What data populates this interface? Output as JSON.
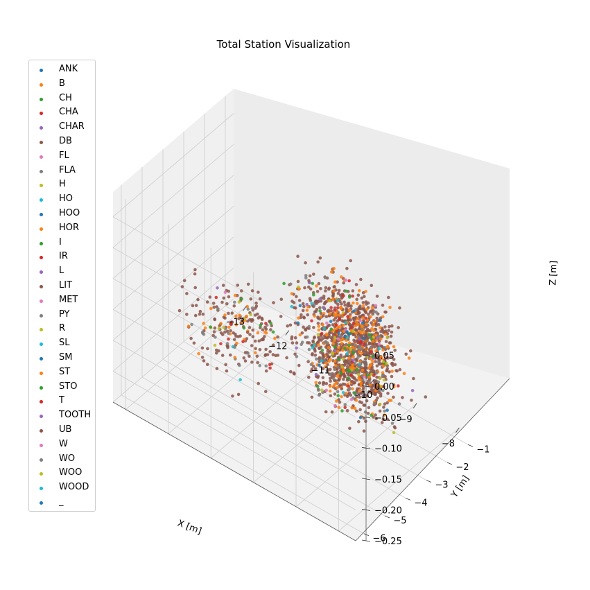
{
  "chart_data": {
    "type": "scatter",
    "title": "Total Station Visualization",
    "xlabel": "X [m]",
    "ylabel": "Y [m]",
    "zlabel": "Z [m]",
    "xlim": [
      -13.3,
      -7.6
    ],
    "ylim": [
      -6.4,
      -0.6
    ],
    "zlim": [
      -0.25,
      0.09
    ],
    "x_ticks": [
      "−13",
      "−12",
      "−11",
      "−10",
      "−9",
      "−8"
    ],
    "x_tick_values": [
      -13,
      -12,
      -11,
      -10,
      -9,
      -8
    ],
    "y_ticks": [
      "−1",
      "−2",
      "−3",
      "−4",
      "−5",
      "−6"
    ],
    "y_tick_values": [
      -1,
      -2,
      -3,
      -4,
      -5,
      -6
    ],
    "z_ticks": [
      "0.05",
      "0.00",
      "−0.05",
      "−0.10",
      "−0.15",
      "−0.20",
      "−0.25"
    ],
    "z_tick_values": [
      0.05,
      0.0,
      -0.05,
      -0.1,
      -0.15,
      -0.2,
      -0.25
    ],
    "grid": true,
    "legend_position": "left",
    "series": [
      {
        "name": "ANK",
        "color": "#1f77b4",
        "count": 3
      },
      {
        "name": "B",
        "color": "#ff7f0e",
        "count": 150
      },
      {
        "name": "CH",
        "color": "#2ca02c",
        "count": 20
      },
      {
        "name": "CHA",
        "color": "#d62728",
        "count": 25
      },
      {
        "name": "CHAR",
        "color": "#9467bd",
        "count": 6
      },
      {
        "name": "DB",
        "color": "#8c564b",
        "count": 900
      },
      {
        "name": "FL",
        "color": "#e377c2",
        "count": 4
      },
      {
        "name": "FLA",
        "color": "#7f7f7f",
        "count": 5
      },
      {
        "name": "H",
        "color": "#bcbd22",
        "count": 15
      },
      {
        "name": "HO",
        "color": "#17becf",
        "count": 6
      },
      {
        "name": "HOO",
        "color": "#1f77b4",
        "count": 5
      },
      {
        "name": "HOR",
        "color": "#ff7f0e",
        "count": 40
      },
      {
        "name": "I",
        "color": "#2ca02c",
        "count": 6
      },
      {
        "name": "IR",
        "color": "#d62728",
        "count": 5
      },
      {
        "name": "L",
        "color": "#9467bd",
        "count": 4
      },
      {
        "name": "LIT",
        "color": "#8c564b",
        "count": 60
      },
      {
        "name": "MET",
        "color": "#e377c2",
        "count": 4
      },
      {
        "name": "PY",
        "color": "#7f7f7f",
        "count": 30
      },
      {
        "name": "R",
        "color": "#bcbd22",
        "count": 8
      },
      {
        "name": "SL",
        "color": "#17becf",
        "count": 4
      },
      {
        "name": "SM",
        "color": "#1f77b4",
        "count": 3
      },
      {
        "name": "ST",
        "color": "#ff7f0e",
        "count": 40
      },
      {
        "name": "STO",
        "color": "#2ca02c",
        "count": 10
      },
      {
        "name": "T",
        "color": "#d62728",
        "count": 5
      },
      {
        "name": "TOOTH",
        "color": "#9467bd",
        "count": 3
      },
      {
        "name": "UB",
        "color": "#8c564b",
        "count": 200
      },
      {
        "name": "W",
        "color": "#e377c2",
        "count": 4
      },
      {
        "name": "WO",
        "color": "#7f7f7f",
        "count": 60
      },
      {
        "name": "WOO",
        "color": "#bcbd22",
        "count": 8
      },
      {
        "name": "WOOD",
        "color": "#17becf",
        "count": 5
      },
      {
        "name": "_",
        "color": "#1f77b4",
        "count": 3
      }
    ]
  }
}
